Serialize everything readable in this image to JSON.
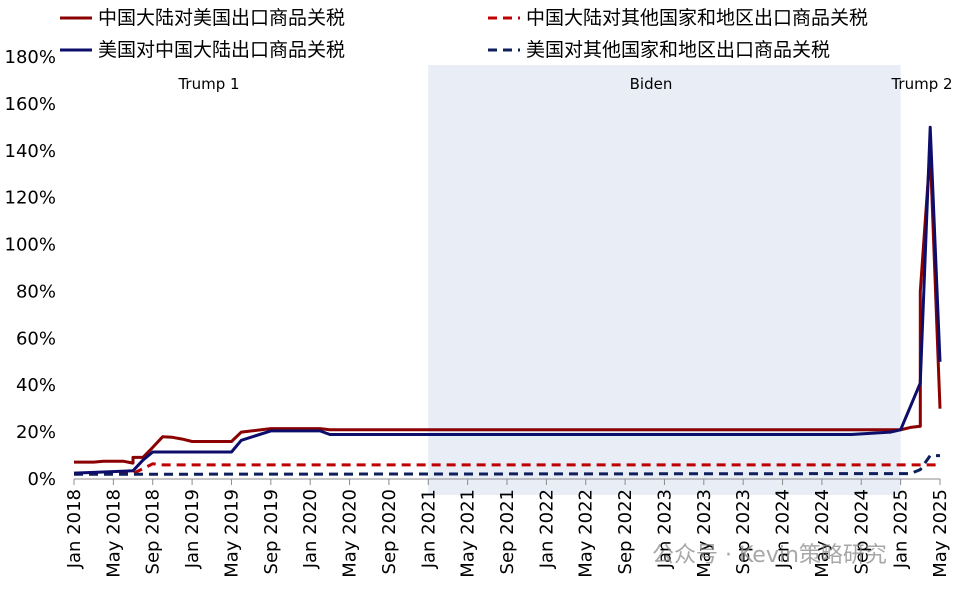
{
  "chart_data": {
    "type": "line",
    "x_unit": "month",
    "x_start": "2018-01",
    "x_end": "2025-05",
    "ylim": [
      0,
      180
    ],
    "y_ticks": [
      0,
      20,
      40,
      60,
      80,
      100,
      120,
      140,
      160,
      180
    ],
    "y_tick_labels": [
      "0%",
      "20%",
      "40%",
      "60%",
      "80%",
      "100%",
      "120%",
      "140%",
      "160%",
      "180%"
    ],
    "x_tick_labels": [
      "Jan 2018",
      "May 2018",
      "Sep 2018",
      "Jan 2019",
      "May 2019",
      "Sep 2019",
      "Jan 2020",
      "May 2020",
      "Sep 2020",
      "Jan 2021",
      "May 2021",
      "Sep 2021",
      "Jan 2022",
      "May 2022",
      "Sep 2022",
      "Jan 2023",
      "May 2023",
      "Sep 2023",
      "Jan 2024",
      "May 2024",
      "Sep 2024",
      "Jan 2025",
      "May 2025"
    ],
    "x_ticks": [
      "2018-01",
      "2018-05",
      "2018-09",
      "2019-01",
      "2019-05",
      "2019-09",
      "2020-01",
      "2020-05",
      "2020-09",
      "2021-01",
      "2021-05",
      "2021-09",
      "2022-01",
      "2022-05",
      "2022-09",
      "2023-01",
      "2023-05",
      "2023-09",
      "2024-01",
      "2024-05",
      "2024-09",
      "2025-01",
      "2025-05"
    ],
    "shaded_period": {
      "label": "Biden",
      "start": "2021-01",
      "end": "2025-01"
    },
    "period_labels": [
      {
        "text": "Trump 1",
        "at": "2019-01"
      },
      {
        "text": "Biden",
        "at": "2023-01"
      },
      {
        "text": "Trump 2",
        "at": "2025-03"
      }
    ],
    "grid": false,
    "legend_position": "top",
    "series": [
      {
        "name": "中国大陆对美国出口商品关税",
        "color": "#8b0000",
        "dash": "solid",
        "points": [
          [
            "2018-01",
            7.2
          ],
          [
            "2018-03",
            7.2
          ],
          [
            "2018-04",
            7.6
          ],
          [
            "2018-06",
            7.6
          ],
          [
            "2018-07",
            6.8
          ],
          [
            "2018-07",
            9.2
          ],
          [
            "2018-08",
            9.2
          ],
          [
            "2018-09",
            13.5
          ],
          [
            "2018-10",
            18.0
          ],
          [
            "2018-11",
            17.8
          ],
          [
            "2018-12",
            17.0
          ],
          [
            "2019-01",
            16.0
          ],
          [
            "2019-05",
            16.0
          ],
          [
            "2019-06",
            20.0
          ],
          [
            "2019-09",
            21.5
          ],
          [
            "2020-02",
            21.5
          ],
          [
            "2020-03",
            21.0
          ],
          [
            "2025-01",
            21.0
          ],
          [
            "2025-02",
            22.0
          ],
          [
            "2025-03",
            22.5
          ],
          [
            "2025-03",
            80.0
          ],
          [
            "2025-04",
            140.0
          ],
          [
            "2025-05",
            30.0
          ]
        ]
      },
      {
        "name": "美国对中国大陆出口商品关税",
        "color": "#0d0d6b",
        "dash": "solid",
        "points": [
          [
            "2018-01",
            2.5
          ],
          [
            "2018-03",
            2.8
          ],
          [
            "2018-07",
            3.5
          ],
          [
            "2018-08",
            8.0
          ],
          [
            "2018-09",
            11.5
          ],
          [
            "2019-05",
            11.5
          ],
          [
            "2019-06",
            16.5
          ],
          [
            "2019-09",
            20.5
          ],
          [
            "2020-02",
            20.5
          ],
          [
            "2020-03",
            19.0
          ],
          [
            "2024-08",
            19.0
          ],
          [
            "2024-12",
            20.0
          ],
          [
            "2025-01",
            21.0
          ],
          [
            "2025-02",
            31.0
          ],
          [
            "2025-03",
            41.0
          ],
          [
            "2025-03",
            41.5
          ],
          [
            "2025-04",
            150.0
          ],
          [
            "2025-05",
            50.0
          ]
        ]
      },
      {
        "name": "中国大陆对其他国家和地区出口商品关税",
        "color": "#c00000",
        "dash": "dashed",
        "points": [
          [
            "2018-01",
            2.3
          ],
          [
            "2018-07",
            2.3
          ],
          [
            "2018-09",
            6.5
          ],
          [
            "2018-10",
            6.0
          ],
          [
            "2025-05",
            6.0
          ]
        ]
      },
      {
        "name": "美国对其他国家和地区出口商品关税",
        "color": "#0d1f5c",
        "dash": "dashed",
        "points": [
          [
            "2018-01",
            2.0
          ],
          [
            "2025-02",
            2.3
          ],
          [
            "2025-03",
            4.0
          ],
          [
            "2025-04",
            10.0
          ],
          [
            "2025-05",
            10.0
          ]
        ]
      }
    ]
  },
  "watermark": "公众号 · Kevin策略研究"
}
